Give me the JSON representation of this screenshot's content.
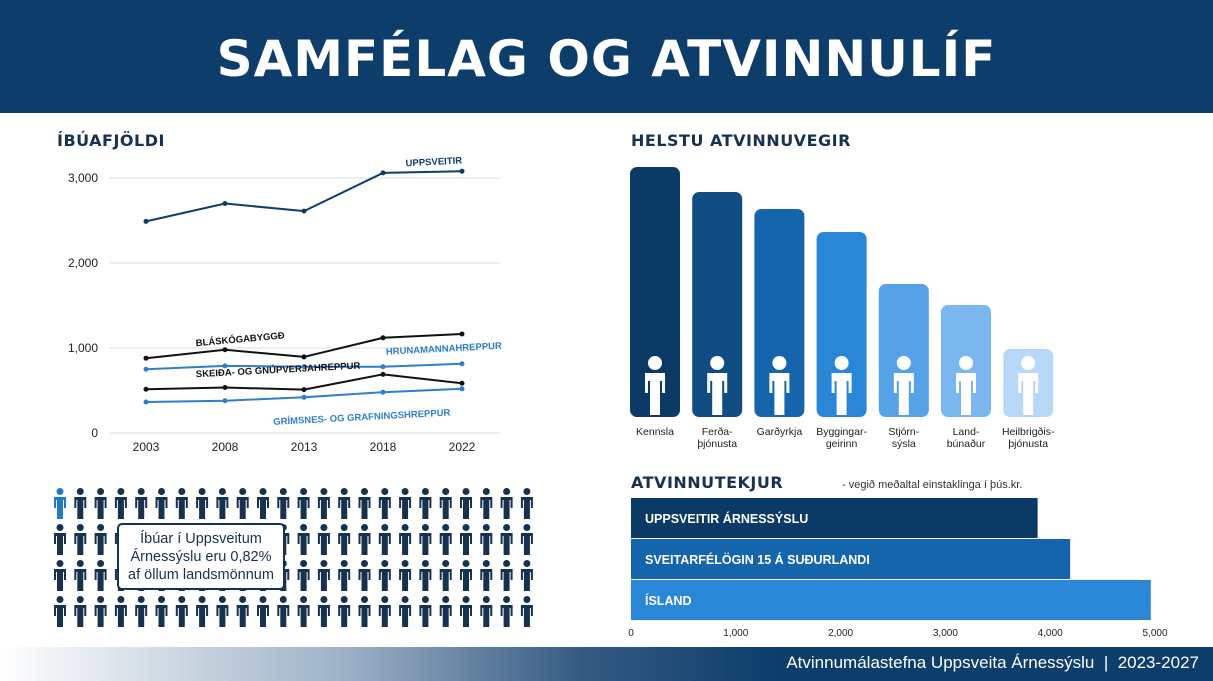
{
  "header": {
    "title": "SAMFÉLAG OG ATVINNULÍF"
  },
  "population": {
    "section_title": "ÍBÚAFJÖLDI",
    "callout_lines": [
      "Íbúar í Uppsveitum",
      "Árnessýslu eru 0,82%",
      "af öllum landsmönnum"
    ]
  },
  "industries": {
    "section_title": "HELSTU ATVINNUVEGIR"
  },
  "income": {
    "section_title": "ATVINNUTEKJUR",
    "note": "- vegið meðaltal einstaklinga í þús.kr."
  },
  "footer": {
    "text": "Atvinnumálastefna Uppsveita Árnessýslu  |  2023-2027"
  },
  "colors": {
    "navy": "#0c3d6b",
    "dark": "#0b3a66",
    "mid": "#1f78c8",
    "light": "#7fb8ea"
  },
  "chart_data": [
    {
      "type": "line",
      "title": "ÍBÚAFJÖLDI",
      "x": [
        "2003",
        "2008",
        "2013",
        "2018",
        "2022"
      ],
      "ylim": [
        0,
        3000
      ],
      "yticks": [
        "0",
        "1,000",
        "2,000",
        "3,000"
      ],
      "grid": true,
      "series": [
        {
          "name": "UPPSVEITIR",
          "color": "#0c3d6b",
          "values": [
            2490,
            2700,
            2610,
            3060,
            3080
          ]
        },
        {
          "name": "BLÁSKÓGABYGGÐ",
          "color": "#111111",
          "values": [
            880,
            980,
            895,
            1120,
            1165
          ]
        },
        {
          "name": "HRUNAMANNAHREPPUR",
          "color": "#2f7fc8",
          "values": [
            750,
            790,
            780,
            780,
            815
          ]
        },
        {
          "name": "SKEIÐA- OG GNÚPVERJAHREPPUR",
          "color": "#111111",
          "values": [
            515,
            535,
            510,
            690,
            585
          ]
        },
        {
          "name": "GRÍMSNES- OG GRAFNINGSHREPPUR",
          "color": "#2f7fc8",
          "values": [
            365,
            380,
            420,
            480,
            520
          ]
        }
      ]
    },
    {
      "type": "bar",
      "title": "HELSTU ATVINNUVEGIR",
      "categories": [
        "Kennsla",
        "Ferða-\nþjónusta",
        "Garðyrkja",
        "Byggingar-\ngeirinn",
        "Stjórn-\nsýsla",
        "Land-\nbúnaður",
        "Heilbrigðis-\nþjónusta"
      ],
      "values": [
        250,
        225,
        208,
        185,
        133,
        112,
        68
      ],
      "colors": [
        "#0b3a66",
        "#114d82",
        "#1565ad",
        "#2a86d6",
        "#55a2e6",
        "#7ab7ef",
        "#b7d8f6"
      ],
      "icons": [
        "teacher-icon",
        "traveler-icon",
        "gardener-icon",
        "builder-icon",
        "administrator-icon",
        "farmer-icon",
        "doctor-icon"
      ]
    },
    {
      "type": "bar",
      "orientation": "horizontal",
      "title": "ATVINNUTEKJUR",
      "categories": [
        "UPPSVEITIR ÁRNESSÝSLU",
        "SVEITARFÉLÖGIN 15 Á SUÐURLANDI",
        "ÍSLAND"
      ],
      "values": [
        3880,
        4190,
        4960
      ],
      "colors": [
        "#0b3a66",
        "#1565ad",
        "#2a86d6"
      ],
      "xlim": [
        0,
        5000
      ],
      "xticks": [
        "0",
        "1,000",
        "2,000",
        "3,000",
        "4,000",
        "5,000"
      ]
    }
  ]
}
